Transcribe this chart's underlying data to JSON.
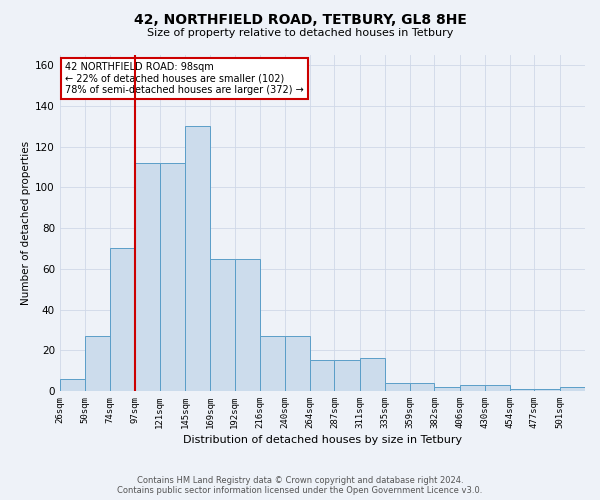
{
  "title1": "42, NORTHFIELD ROAD, TETBURY, GL8 8HE",
  "title2": "Size of property relative to detached houses in Tetbury",
  "xlabel": "Distribution of detached houses by size in Tetbury",
  "ylabel": "Number of detached properties",
  "bin_labels": [
    "26sqm",
    "50sqm",
    "74sqm",
    "97sqm",
    "121sqm",
    "145sqm",
    "169sqm",
    "192sqm",
    "216sqm",
    "240sqm",
    "264sqm",
    "287sqm",
    "311sqm",
    "335sqm",
    "359sqm",
    "382sqm",
    "406sqm",
    "430sqm",
    "454sqm",
    "477sqm",
    "501sqm"
  ],
  "bin_starts": [
    26,
    50,
    74,
    97,
    121,
    145,
    169,
    192,
    216,
    240,
    264,
    287,
    311,
    335,
    359,
    382,
    406,
    430,
    454,
    477,
    501
  ],
  "bar_values": [
    6,
    27,
    70,
    112,
    112,
    130,
    65,
    65,
    27,
    27,
    15,
    15,
    16,
    4,
    4,
    2,
    3,
    3,
    1,
    1,
    2
  ],
  "bar_color": "#ccdcec",
  "bar_edge_color": "#5a9ec8",
  "grid_color": "#d0d8e8",
  "vline_x": 97,
  "vline_color": "#cc0000",
  "annotation_text": "42 NORTHFIELD ROAD: 98sqm\n← 22% of detached houses are smaller (102)\n78% of semi-detached houses are larger (372) →",
  "annotation_box_color": "#ffffff",
  "annotation_box_edge": "#cc0000",
  "ylim": [
    0,
    165
  ],
  "yticks": [
    0,
    20,
    40,
    60,
    80,
    100,
    120,
    140,
    160
  ],
  "footer1": "Contains HM Land Registry data © Crown copyright and database right 2024.",
  "footer2": "Contains public sector information licensed under the Open Government Licence v3.0.",
  "bg_color": "#eef2f8"
}
